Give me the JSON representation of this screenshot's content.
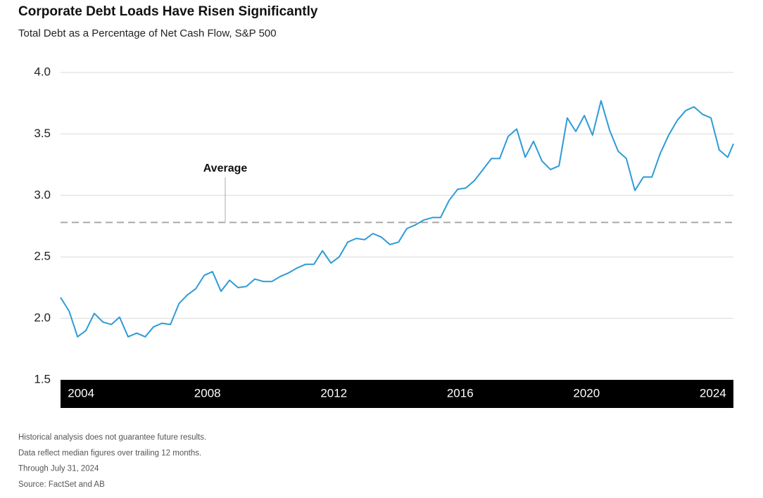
{
  "chart_data": {
    "type": "line",
    "title": "Corporate Debt Loads Have Risen Significantly",
    "subtitle": "Total Debt as a Percentage of Net Cash Flow, S&P 500",
    "x": [
      2003.35,
      2003.62,
      2003.89,
      2004.15,
      2004.42,
      2004.69,
      2004.96,
      2005.22,
      2005.49,
      2005.76,
      2006.03,
      2006.29,
      2006.56,
      2006.83,
      2007.1,
      2007.36,
      2007.63,
      2007.9,
      2008.16,
      2008.43,
      2008.7,
      2008.97,
      2009.23,
      2009.5,
      2009.77,
      2010.04,
      2010.3,
      2010.57,
      2010.84,
      2011.11,
      2011.37,
      2011.64,
      2011.91,
      2012.17,
      2012.44,
      2012.71,
      2012.98,
      2013.24,
      2013.51,
      2013.78,
      2014.05,
      2014.31,
      2014.58,
      2014.85,
      2015.12,
      2015.38,
      2015.65,
      2015.92,
      2016.18,
      2016.45,
      2016.72,
      2016.99,
      2017.25,
      2017.52,
      2017.79,
      2018.06,
      2018.32,
      2018.59,
      2018.86,
      2019.13,
      2019.39,
      2019.66,
      2019.93,
      2020.19,
      2020.46,
      2020.73,
      2021.0,
      2021.26,
      2021.53,
      2021.8,
      2022.07,
      2022.33,
      2022.6,
      2022.87,
      2023.14,
      2023.4,
      2023.67,
      2023.94,
      2024.2,
      2024.47,
      2024.65
    ],
    "series": [
      {
        "name": "Total Debt / Net Cash Flow",
        "color": "#2e9bd6",
        "values": [
          2.17,
          2.06,
          1.85,
          1.9,
          2.04,
          1.97,
          1.95,
          2.01,
          1.85,
          1.88,
          1.85,
          1.93,
          1.96,
          1.95,
          2.12,
          2.19,
          2.24,
          2.35,
          2.38,
          2.22,
          2.31,
          2.25,
          2.26,
          2.32,
          2.3,
          2.3,
          2.34,
          2.37,
          2.41,
          2.44,
          2.44,
          2.55,
          2.45,
          2.5,
          2.62,
          2.65,
          2.64,
          2.69,
          2.66,
          2.6,
          2.62,
          2.73,
          2.76,
          2.8,
          2.82,
          2.82,
          2.96,
          3.05,
          3.06,
          3.12,
          3.21,
          3.3,
          3.3,
          3.48,
          3.54,
          3.31,
          3.44,
          3.28,
          3.21,
          3.24,
          3.63,
          3.52,
          3.65,
          3.49,
          3.77,
          3.53,
          3.36,
          3.3,
          3.04,
          3.15,
          3.15,
          3.34,
          3.49,
          3.61,
          3.69,
          3.72,
          3.66,
          3.63,
          3.37,
          3.31,
          3.42
        ]
      }
    ],
    "average": {
      "label": "Average",
      "value": 2.78,
      "color": "#aaaaaa"
    },
    "xlim": [
      2003.35,
      2024.65
    ],
    "xticks": [
      2004,
      2008,
      2012,
      2016,
      2020,
      2024
    ],
    "ylim": [
      1.5,
      4.0
    ],
    "yticks": [
      {
        "value": 1.5,
        "label": "1.5"
      },
      {
        "value": 2.0,
        "label": "2.0"
      },
      {
        "value": 2.5,
        "label": "2.5"
      },
      {
        "value": 3.0,
        "label": "3.0"
      },
      {
        "value": 3.5,
        "label": "3.5"
      },
      {
        "value": 4.0,
        "label": "4.0"
      }
    ],
    "grid": true,
    "notes": [
      "Historical analysis does not guarantee future results.",
      "Data reflect median figures over trailing 12 months.",
      "Through July 31, 2024",
      "Source: FactSet and AB"
    ]
  }
}
